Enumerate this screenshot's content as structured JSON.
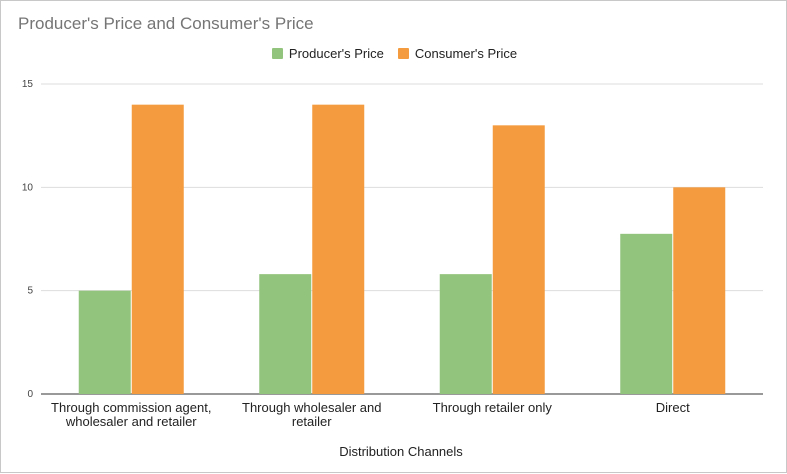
{
  "chart_data": {
    "type": "bar",
    "title": "Producer's Price and Consumer's Price",
    "xlabel": "Distribution Channels",
    "ylabel": "",
    "ylim": [
      0,
      15
    ],
    "yticks": [
      0,
      5,
      10,
      15
    ],
    "categories": [
      [
        "Through commission agent,",
        "wholesaler and retailer"
      ],
      [
        "Through wholesaler and",
        "retailer"
      ],
      [
        "Through retailer only"
      ],
      [
        "Direct"
      ]
    ],
    "series": [
      {
        "name": "Producer's Price",
        "color": "#93c47d",
        "values": [
          5,
          5.8,
          5.8,
          7.75
        ]
      },
      {
        "name": "Consumer's Price",
        "color": "#f39b3e",
        "values": [
          14,
          14,
          13,
          10
        ]
      }
    ],
    "legend_position": "top-center"
  }
}
